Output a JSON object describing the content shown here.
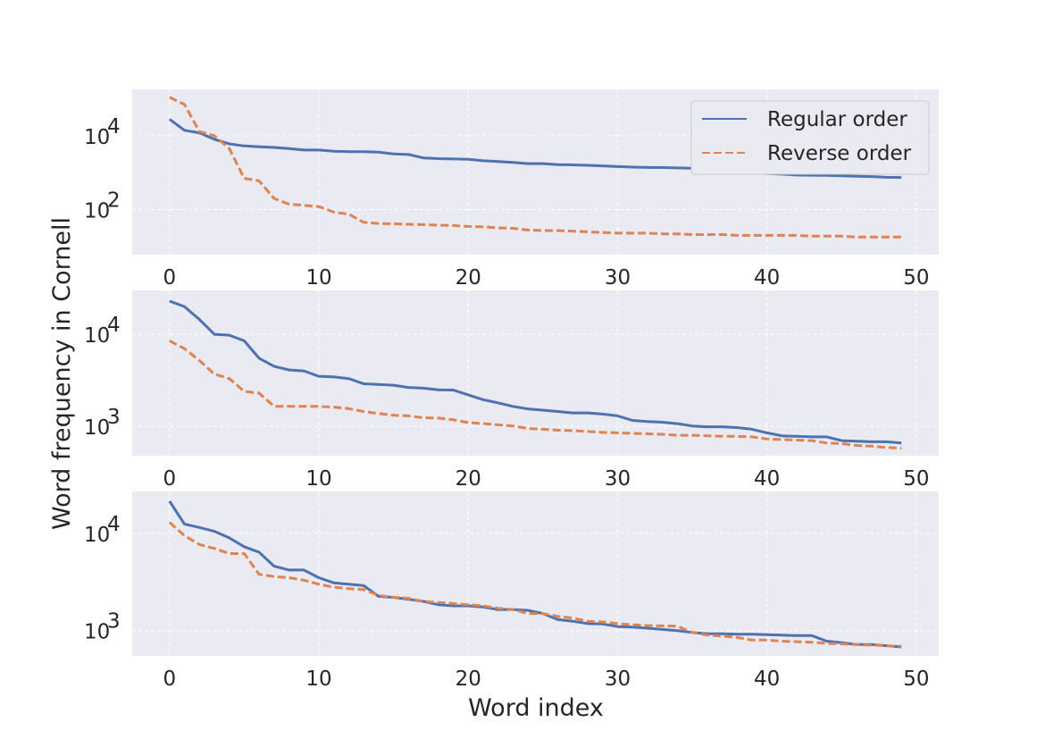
{
  "figure": {
    "xlabel": "Word index",
    "ylabel": "Word frequency in Cornell"
  },
  "legend": {
    "placement": "top-right",
    "entries": [
      {
        "label": "Regular order",
        "series": 0
      },
      {
        "label": "Reverse order",
        "series": 1
      }
    ]
  },
  "colors": {
    "series_regular": "#4c72b0",
    "series_reverse": "#dd8452",
    "panel_background": "#eaeaf2",
    "grid": "#ffffff",
    "text": "#262626"
  },
  "chart_data": [
    {
      "type": "line",
      "yscale": "log",
      "grid": true,
      "xlim": [
        -2.5,
        51.5
      ],
      "ylim": [
        6,
        180000
      ],
      "xticks": [
        0,
        10,
        20,
        30,
        40,
        50
      ],
      "xtick_labels": [
        "0",
        "10",
        "20",
        "30",
        "40",
        "50"
      ],
      "yticks": [
        100,
        10000
      ],
      "ytick_labels": [
        {
          "base": "10",
          "exp": "2"
        },
        {
          "base": "10",
          "exp": "4"
        }
      ],
      "x": [
        0,
        1,
        2,
        3,
        4,
        5,
        6,
        7,
        8,
        9,
        10,
        11,
        12,
        13,
        14,
        15,
        16,
        17,
        18,
        19,
        20,
        21,
        22,
        23,
        24,
        25,
        26,
        27,
        28,
        29,
        30,
        31,
        32,
        33,
        34,
        35,
        36,
        37,
        38,
        39,
        40,
        41,
        42,
        43,
        44,
        45,
        46,
        47,
        48,
        49
      ],
      "series": [
        {
          "name": "Regular order",
          "style": "solid",
          "values": [
            28000,
            14000,
            12000,
            8000,
            6000,
            5300,
            5000,
            4800,
            4500,
            4100,
            4100,
            3800,
            3700,
            3700,
            3600,
            3200,
            3100,
            2500,
            2400,
            2350,
            2300,
            2100,
            2000,
            1900,
            1750,
            1750,
            1650,
            1620,
            1580,
            1530,
            1460,
            1410,
            1380,
            1370,
            1340,
            1310,
            1250,
            1170,
            1100,
            1000,
            950,
            910,
            860,
            850,
            840,
            820,
            800,
            780,
            750,
            740
          ]
        },
        {
          "name": "Reverse order",
          "style": "dashed",
          "values": [
            110000,
            70000,
            13000,
            10000,
            4500,
            700,
            600,
            200,
            140,
            130,
            120,
            85,
            75,
            45,
            42,
            41,
            40,
            39,
            38,
            37,
            35,
            34,
            32,
            31,
            28,
            27,
            27,
            26,
            25,
            24,
            23,
            23,
            23,
            22,
            22,
            21,
            21,
            21,
            20,
            20,
            20,
            20,
            20,
            19,
            19,
            19,
            18,
            18,
            18,
            18
          ]
        }
      ]
    },
    {
      "type": "line",
      "yscale": "log",
      "grid": true,
      "xlim": [
        -2.5,
        51.5
      ],
      "ylim": [
        480,
        30000
      ],
      "xticks": [
        0,
        10,
        20,
        30,
        40,
        50
      ],
      "xtick_labels": [
        "0",
        "10",
        "20",
        "30",
        "40",
        "50"
      ],
      "yticks": [
        1000,
        10000
      ],
      "ytick_labels": [
        {
          "base": "10",
          "exp": "3"
        },
        {
          "base": "10",
          "exp": "4"
        }
      ],
      "x": [
        0,
        1,
        2,
        3,
        4,
        5,
        6,
        7,
        8,
        9,
        10,
        11,
        12,
        13,
        14,
        15,
        16,
        17,
        18,
        19,
        20,
        21,
        22,
        23,
        24,
        25,
        26,
        27,
        28,
        29,
        30,
        31,
        32,
        33,
        34,
        35,
        36,
        37,
        38,
        39,
        40,
        41,
        42,
        43,
        44,
        45,
        46,
        47,
        48,
        49
      ],
      "series": [
        {
          "name": "Regular order",
          "style": "solid",
          "values": [
            23000,
            20000,
            14500,
            10000,
            9800,
            8500,
            5500,
            4500,
            4100,
            4000,
            3500,
            3450,
            3300,
            2900,
            2850,
            2800,
            2650,
            2600,
            2500,
            2480,
            2200,
            1950,
            1800,
            1650,
            1550,
            1500,
            1450,
            1400,
            1400,
            1360,
            1300,
            1160,
            1130,
            1110,
            1070,
            1010,
            990,
            990,
            970,
            930,
            850,
            790,
            780,
            770,
            770,
            700,
            690,
            680,
            680,
            660
          ]
        },
        {
          "name": "Reverse order",
          "style": "dashed",
          "values": [
            8500,
            7000,
            5200,
            3700,
            3300,
            2400,
            2300,
            1650,
            1650,
            1650,
            1650,
            1620,
            1560,
            1450,
            1380,
            1320,
            1300,
            1240,
            1230,
            1180,
            1100,
            1070,
            1040,
            1010,
            950,
            930,
            910,
            900,
            880,
            860,
            850,
            840,
            830,
            820,
            800,
            800,
            790,
            780,
            780,
            770,
            730,
            720,
            710,
            700,
            660,
            650,
            620,
            610,
            590,
            580
          ]
        }
      ]
    },
    {
      "type": "line",
      "yscale": "log",
      "grid": true,
      "xlim": [
        -2.5,
        51.5
      ],
      "ylim": [
        550,
        27000
      ],
      "xticks": [
        0,
        10,
        20,
        30,
        40,
        50
      ],
      "xtick_labels": [
        "0",
        "10",
        "20",
        "30",
        "40",
        "50"
      ],
      "yticks": [
        1000,
        10000
      ],
      "ytick_labels": [
        {
          "base": "10",
          "exp": "3"
        },
        {
          "base": "10",
          "exp": "4"
        }
      ],
      "x": [
        0,
        1,
        2,
        3,
        4,
        5,
        6,
        7,
        8,
        9,
        10,
        11,
        12,
        13,
        14,
        15,
        16,
        17,
        18,
        19,
        20,
        21,
        22,
        23,
        24,
        25,
        26,
        27,
        28,
        29,
        30,
        31,
        32,
        33,
        34,
        35,
        36,
        37,
        38,
        39,
        40,
        41,
        42,
        43,
        44,
        45,
        46,
        47,
        48,
        49
      ],
      "series": [
        {
          "name": "Regular order",
          "style": "solid",
          "values": [
            21500,
            12500,
            11500,
            10500,
            9000,
            7300,
            6400,
            4600,
            4200,
            4200,
            3500,
            3100,
            3000,
            2900,
            2250,
            2200,
            2100,
            2000,
            1850,
            1800,
            1800,
            1750,
            1650,
            1650,
            1620,
            1500,
            1300,
            1250,
            1180,
            1170,
            1100,
            1090,
            1060,
            1030,
            1000,
            960,
            930,
            930,
            920,
            920,
            910,
            900,
            890,
            890,
            780,
            750,
            720,
            720,
            700,
            680
          ]
        },
        {
          "name": "Reverse order",
          "style": "dashed",
          "values": [
            13000,
            9500,
            7700,
            7000,
            6200,
            6200,
            3800,
            3600,
            3500,
            3300,
            3000,
            2800,
            2700,
            2650,
            2300,
            2200,
            2150,
            2000,
            1950,
            1900,
            1850,
            1800,
            1700,
            1650,
            1500,
            1500,
            1400,
            1350,
            1250,
            1230,
            1180,
            1150,
            1130,
            1120,
            1110,
            960,
            900,
            880,
            850,
            800,
            800,
            780,
            770,
            760,
            740,
            730,
            720,
            710,
            700,
            690
          ]
        }
      ]
    }
  ]
}
